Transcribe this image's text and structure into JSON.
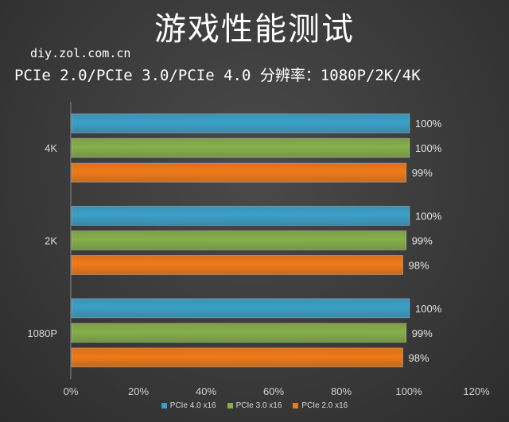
{
  "header": {
    "title": "游戏性能测试",
    "source": "diy.zol.com.cn",
    "subtitle": "PCIe 2.0/PCIe 3.0/PCIe 4.0  分辨率：1080P/2K/4K"
  },
  "colors": {
    "pcie4": "#3aa0c8",
    "pcie3": "#86b04a",
    "pcie2": "#f07a18"
  },
  "chart_data": {
    "type": "bar",
    "orientation": "horizontal",
    "categories": [
      "4K",
      "2K",
      "1080P"
    ],
    "series": [
      {
        "name": "PCIe 4.0 x16",
        "values": [
          100,
          100,
          100
        ],
        "labels": [
          "100%",
          "100%",
          "100%"
        ]
      },
      {
        "name": "PCIe 3.0 x16",
        "values": [
          100,
          99,
          99
        ],
        "labels": [
          "100%",
          "99%",
          "99%"
        ]
      },
      {
        "name": "PCIe 2.0 x16",
        "values": [
          99,
          98,
          98
        ],
        "labels": [
          "99%",
          "98%",
          "98%"
        ]
      }
    ],
    "xlim": [
      0,
      120
    ],
    "x_ticks": [
      "0%",
      "20%",
      "40%",
      "60%",
      "80%",
      "100%",
      "120%"
    ],
    "legend_position": "bottom",
    "grid": false
  }
}
